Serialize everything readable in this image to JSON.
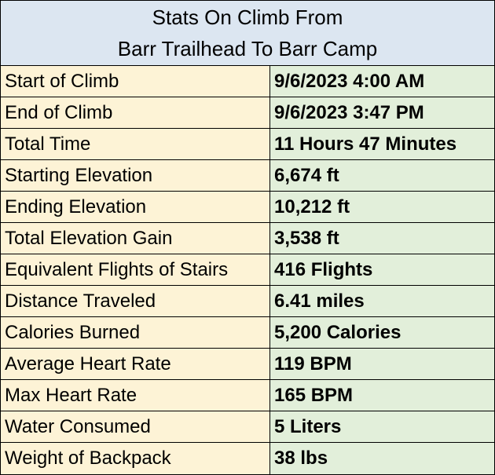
{
  "title": {
    "line1": "Stats On Climb From",
    "line2": "Barr Trailhead To Barr Camp"
  },
  "rows": [
    {
      "label": "Start of Climb",
      "value": "9/6/2023 4:00 AM"
    },
    {
      "label": "End of Climb",
      "value": "9/6/2023 3:47 PM"
    },
    {
      "label": "Total Time",
      "value": "11 Hours 47 Minutes"
    },
    {
      "label": "Starting Elevation",
      "value": "6,674 ft"
    },
    {
      "label": "Ending Elevation",
      "value": "10,212 ft"
    },
    {
      "label": "Total Elevation Gain",
      "value": "3,538 ft"
    },
    {
      "label": "Equivalent Flights of Stairs",
      "value": "416 Flights"
    },
    {
      "label": "Distance Traveled",
      "value": "6.41 miles"
    },
    {
      "label": "Calories Burned",
      "value": "5,200 Calories"
    },
    {
      "label": "Average Heart Rate",
      "value": "119 BPM"
    },
    {
      "label": "Max Heart Rate",
      "value": "165 BPM"
    },
    {
      "label": "Water Consumed",
      "value": "5 Liters"
    },
    {
      "label": "Weight of Backpack",
      "value": "38 lbs"
    }
  ]
}
